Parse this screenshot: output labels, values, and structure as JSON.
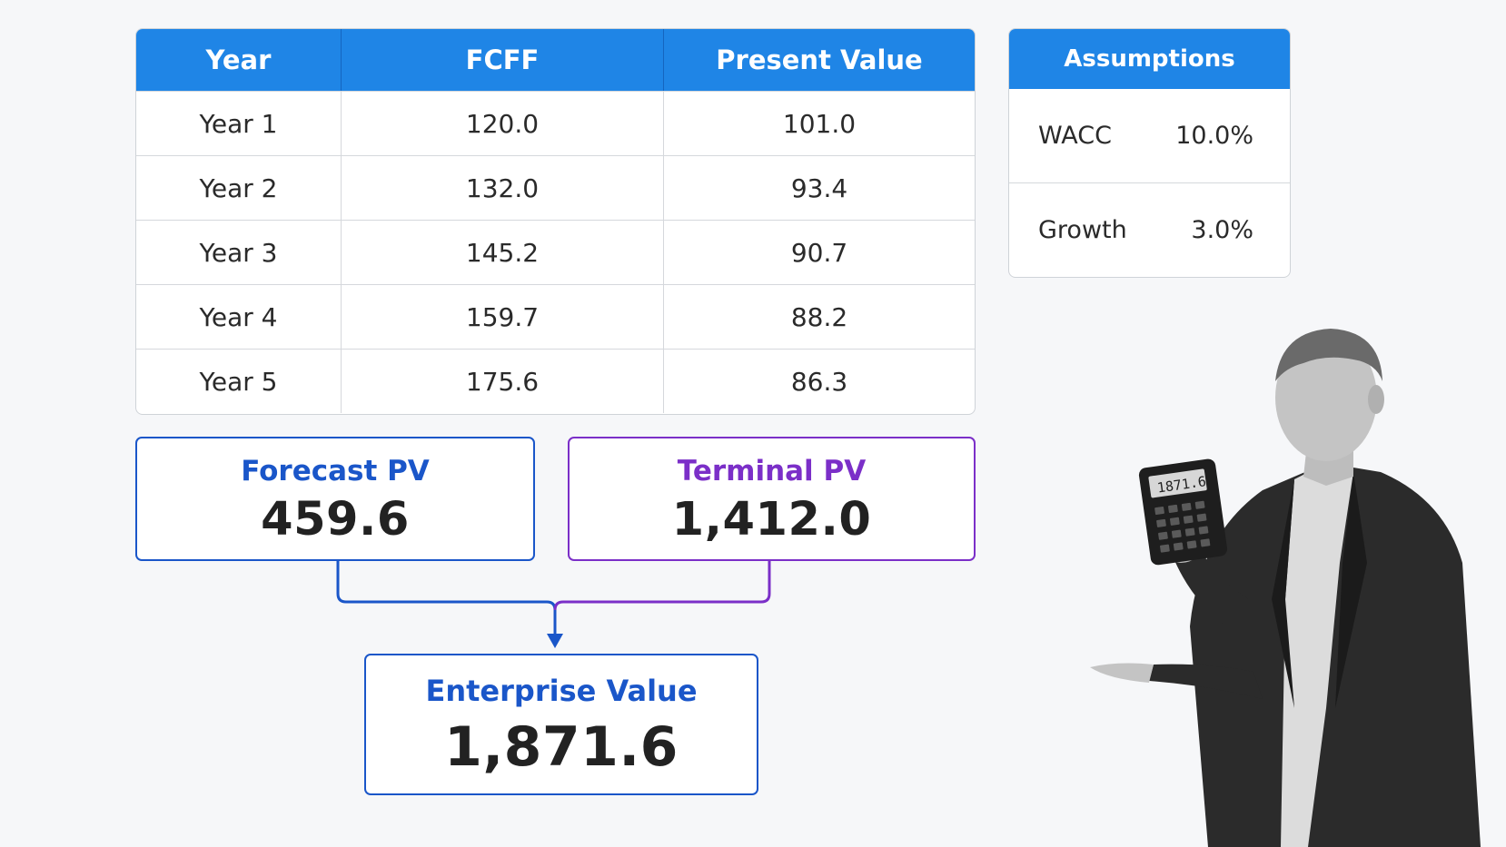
{
  "fcff_table": {
    "headers": [
      "Year",
      "FCFF",
      "Present Value"
    ],
    "rows": [
      [
        "Year 1",
        "120.0",
        "101.0"
      ],
      [
        "Year 2",
        "132.0",
        "93.4"
      ],
      [
        "Year 3",
        "145.2",
        "90.7"
      ],
      [
        "Year 4",
        "159.7",
        "88.2"
      ],
      [
        "Year 5",
        "175.6",
        "86.3"
      ]
    ]
  },
  "assumptions": {
    "title": "Assumptions",
    "items": [
      {
        "label": "WACC",
        "value": "10.0%"
      },
      {
        "label": "Growth",
        "value": "3.0%"
      }
    ]
  },
  "forecast_pv": {
    "label": "Forecast PV",
    "value": "459.6"
  },
  "terminal_pv": {
    "label": "Terminal PV",
    "value": "1,412.0"
  },
  "enterprise_value": {
    "label": "Enterprise Value",
    "value": "1,871.6"
  },
  "calculator": {
    "display": "1871.6"
  },
  "colors": {
    "header_blue": "#1f85e6",
    "forecast_blue": "#1a56c9",
    "terminal_purple": "#7b2fc8"
  }
}
